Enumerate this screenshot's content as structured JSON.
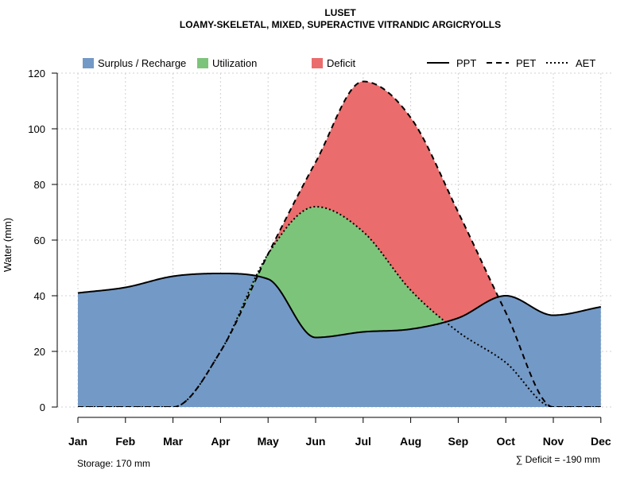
{
  "chart_data": {
    "type": "area",
    "title": "LUSET",
    "subtitle": "LOAMY-SKELETAL, MIXED, SUPERACTIVE VITRANDIC ARGICRYOLLS",
    "xlabel": "",
    "ylabel": "Water (mm)",
    "ylim": [
      0,
      120
    ],
    "yticks": [
      0,
      20,
      40,
      60,
      80,
      100,
      120
    ],
    "categories": [
      "Jan",
      "Feb",
      "Mar",
      "Apr",
      "May",
      "Jun",
      "Jul",
      "Aug",
      "Sep",
      "Oct",
      "Nov",
      "Dec"
    ],
    "grid": true,
    "legend_position": "top",
    "series": [
      {
        "name": "PPT",
        "style": "solid",
        "values": [
          41,
          43,
          47,
          48,
          46,
          25,
          27,
          28,
          32,
          40,
          33,
          36
        ]
      },
      {
        "name": "PET",
        "style": "dashed",
        "values": [
          0,
          0,
          0,
          20,
          55,
          88,
          117,
          104,
          70,
          34,
          0,
          0
        ]
      },
      {
        "name": "AET",
        "style": "dotted",
        "values": [
          0,
          0,
          0,
          20,
          55,
          72,
          63,
          42,
          27,
          16,
          0,
          0
        ]
      }
    ],
    "fill_legend": [
      {
        "name": "Surplus / Recharge",
        "color": "#7399c6"
      },
      {
        "name": "Utilization",
        "color": "#7dc47b"
      },
      {
        "name": "Deficit",
        "color": "#eb6c6c"
      }
    ],
    "line_legend": [
      {
        "name": "PPT",
        "style": "solid"
      },
      {
        "name": "PET",
        "style": "dashed"
      },
      {
        "name": "AET",
        "style": "dotted"
      }
    ],
    "storage_note": "Storage: 170 mm",
    "deficit_note": "∑ Deficit = -190 mm"
  }
}
